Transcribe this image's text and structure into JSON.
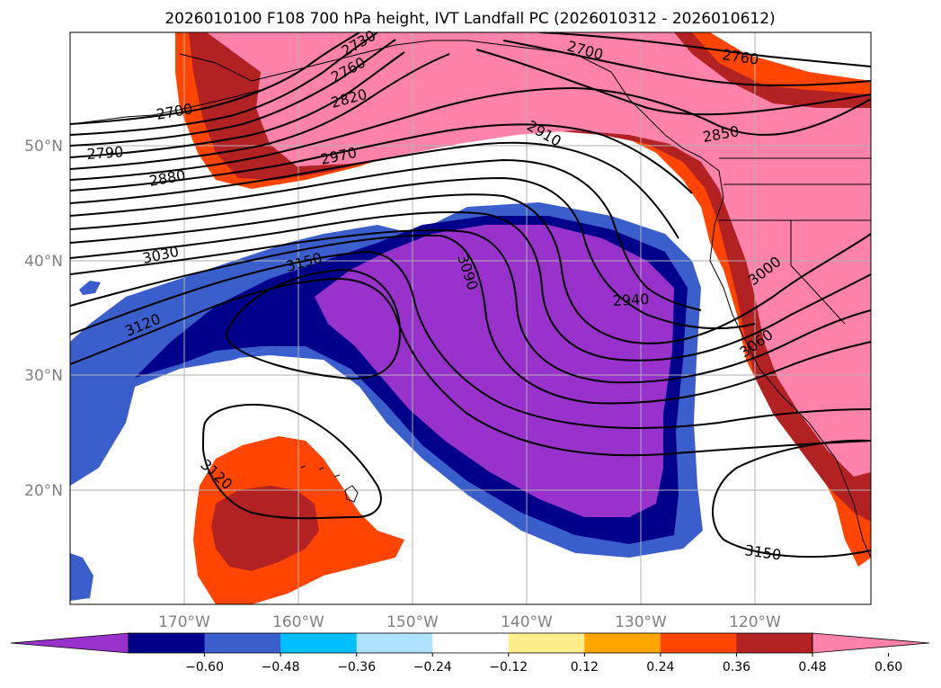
{
  "title": "2026010100 F108 700 hPa height, IVT Landfall PC (2026010312 - 2026010612)",
  "lat_labels": [
    "50°N",
    "40°N",
    "30°N",
    "20°N"
  ],
  "lon_labels": [
    "170°W",
    "160°W",
    "150°W",
    "140°W",
    "130°W",
    "120°W"
  ],
  "contour_labels": [
    "2700",
    "2790",
    "2880",
    "3030",
    "3120",
    "3150",
    "3090",
    "2970",
    "2820",
    "2760",
    "2730",
    "2700",
    "2760",
    "2910",
    "2850",
    "2940",
    "3000",
    "3060",
    "3120",
    "3150"
  ],
  "colorbar": {
    "ticks": [
      "−0.60",
      "−0.48",
      "−0.36",
      "−0.24",
      "−0.12",
      "0.12",
      "0.24",
      "0.36",
      "0.48",
      "0.60"
    ],
    "colors": [
      "#9932cc",
      "#00008b",
      "#3a5fcd",
      "#00bfff",
      "#b0e2ff",
      "#ffffff",
      "#ffec8b",
      "#ffa500",
      "#ff4500",
      "#b22222",
      "#ff82ab"
    ]
  }
}
